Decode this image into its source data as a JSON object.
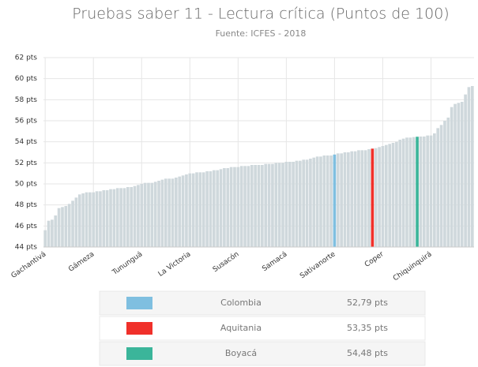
{
  "chart_data": {
    "type": "bar",
    "title": "Pruebas saber 11 - Lectura crítica (Puntos de 100)",
    "subtitle": "Fuente: ICFES - 2018",
    "categories": [
      "Gachantivá",
      null,
      null,
      null,
      null,
      null,
      null,
      null,
      null,
      null,
      null,
      null,
      null,
      null,
      "Gámeza",
      null,
      null,
      null,
      null,
      null,
      null,
      null,
      null,
      null,
      null,
      null,
      null,
      null,
      "Tununguá",
      null,
      null,
      null,
      null,
      null,
      null,
      null,
      null,
      null,
      null,
      null,
      null,
      null,
      "La Victoria",
      null,
      null,
      null,
      null,
      null,
      null,
      null,
      null,
      null,
      null,
      null,
      null,
      null,
      "Susacón",
      null,
      null,
      null,
      null,
      null,
      null,
      null,
      null,
      null,
      null,
      null,
      null,
      null,
      "Samacá",
      null,
      null,
      null,
      null,
      null,
      null,
      null,
      null,
      null,
      null,
      null,
      null,
      null,
      "Sativanorte",
      null,
      null,
      null,
      null,
      null,
      null,
      null,
      null,
      null,
      null,
      null,
      null,
      null,
      "Coper",
      null,
      null,
      null,
      null,
      null,
      null,
      null,
      null,
      null,
      null,
      null,
      null,
      null,
      "Chiquinquirá",
      null,
      null,
      null,
      null,
      null,
      null,
      null,
      null,
      null,
      null,
      null,
      null
    ],
    "values": [
      45.6,
      46.5,
      46.6,
      47.0,
      47.7,
      47.8,
      47.9,
      48.1,
      48.4,
      48.7,
      49.0,
      49.1,
      49.2,
      49.2,
      49.2,
      49.3,
      49.3,
      49.4,
      49.4,
      49.5,
      49.5,
      49.6,
      49.6,
      49.6,
      49.7,
      49.7,
      49.8,
      49.9,
      50.0,
      50.1,
      50.1,
      50.1,
      50.2,
      50.3,
      50.4,
      50.5,
      50.5,
      50.5,
      50.6,
      50.7,
      50.8,
      50.9,
      51.0,
      51.0,
      51.1,
      51.1,
      51.1,
      51.2,
      51.2,
      51.3,
      51.3,
      51.4,
      51.5,
      51.5,
      51.6,
      51.6,
      51.6,
      51.7,
      51.7,
      51.7,
      51.8,
      51.8,
      51.8,
      51.8,
      51.9,
      51.9,
      51.9,
      52.0,
      52.0,
      52.0,
      52.1,
      52.1,
      52.1,
      52.2,
      52.2,
      52.3,
      52.3,
      52.4,
      52.5,
      52.6,
      52.6,
      52.7,
      52.7,
      52.7,
      52.79,
      52.9,
      52.9,
      53.0,
      53.0,
      53.1,
      53.1,
      53.2,
      53.2,
      53.2,
      53.3,
      53.35,
      53.4,
      53.5,
      53.6,
      53.7,
      53.8,
      53.9,
      54.0,
      54.2,
      54.3,
      54.4,
      54.4,
      54.45,
      54.48,
      54.5,
      54.5,
      54.6,
      54.6,
      54.8,
      55.3,
      55.6,
      56.0,
      56.3,
      57.3,
      57.6,
      57.7,
      57.8,
      58.5,
      59.2,
      59.3
    ],
    "colors": [
      "#cfd8dc",
      "#cfd8dc",
      "#cfd8dc",
      "#cfd8dc",
      "#cfd8dc",
      "#cfd8dc",
      "#cfd8dc",
      "#cfd8dc",
      "#cfd8dc",
      "#cfd8dc",
      "#cfd8dc",
      "#cfd8dc",
      "#cfd8dc",
      "#cfd8dc",
      "#cfd8dc",
      "#cfd8dc",
      "#cfd8dc",
      "#cfd8dc",
      "#cfd8dc",
      "#cfd8dc",
      "#cfd8dc",
      "#cfd8dc",
      "#cfd8dc",
      "#cfd8dc",
      "#cfd8dc",
      "#cfd8dc",
      "#cfd8dc",
      "#cfd8dc",
      "#cfd8dc",
      "#cfd8dc",
      "#cfd8dc",
      "#cfd8dc",
      "#cfd8dc",
      "#cfd8dc",
      "#cfd8dc",
      "#cfd8dc",
      "#cfd8dc",
      "#cfd8dc",
      "#cfd8dc",
      "#cfd8dc",
      "#cfd8dc",
      "#cfd8dc",
      "#cfd8dc",
      "#cfd8dc",
      "#cfd8dc",
      "#cfd8dc",
      "#cfd8dc",
      "#cfd8dc",
      "#cfd8dc",
      "#cfd8dc",
      "#cfd8dc",
      "#cfd8dc",
      "#cfd8dc",
      "#cfd8dc",
      "#cfd8dc",
      "#cfd8dc",
      "#cfd8dc",
      "#cfd8dc",
      "#cfd8dc",
      "#cfd8dc",
      "#cfd8dc",
      "#cfd8dc",
      "#cfd8dc",
      "#cfd8dc",
      "#cfd8dc",
      "#cfd8dc",
      "#cfd8dc",
      "#cfd8dc",
      "#cfd8dc",
      "#cfd8dc",
      "#cfd8dc",
      "#cfd8dc",
      "#cfd8dc",
      "#cfd8dc",
      "#cfd8dc",
      "#cfd8dc",
      "#cfd8dc",
      "#cfd8dc",
      "#cfd8dc",
      "#cfd8dc",
      "#cfd8dc",
      "#cfd8dc",
      "#cfd8dc",
      "#cfd8dc",
      "#7fbfe0",
      "#cfd8dc",
      "#cfd8dc",
      "#cfd8dc",
      "#cfd8dc",
      "#cfd8dc",
      "#cfd8dc",
      "#cfd8dc",
      "#cfd8dc",
      "#cfd8dc",
      "#cfd8dc",
      "#f0302a",
      "#cfd8dc",
      "#cfd8dc",
      "#cfd8dc",
      "#cfd8dc",
      "#cfd8dc",
      "#cfd8dc",
      "#cfd8dc",
      "#cfd8dc",
      "#cfd8dc",
      "#cfd8dc",
      "#cfd8dc",
      "#cfd8dc",
      "#3bb59a",
      "#cfd8dc",
      "#cfd8dc",
      "#cfd8dc",
      "#cfd8dc",
      "#cfd8dc",
      "#cfd8dc",
      "#cfd8dc",
      "#cfd8dc",
      "#cfd8dc",
      "#cfd8dc",
      "#cfd8dc",
      "#cfd8dc",
      "#cfd8dc",
      "#cfd8dc",
      "#cfd8dc",
      "#cfd8dc"
    ],
    "ylim": [
      44,
      62
    ],
    "yticks": [
      {
        "value": 44,
        "label": "44 pts"
      },
      {
        "value": 46,
        "label": "46 pts"
      },
      {
        "value": 48,
        "label": "48 pts"
      },
      {
        "value": 50,
        "label": "50 pts"
      },
      {
        "value": 52,
        "label": "52 pts"
      },
      {
        "value": 54,
        "label": "54 pts"
      },
      {
        "value": 56,
        "label": "56 pts"
      },
      {
        "value": 58,
        "label": "58 pts"
      },
      {
        "value": 60,
        "label": "60 pts"
      },
      {
        "value": 62,
        "label": "62 pts"
      }
    ],
    "grid": true,
    "legend": [
      {
        "name": "Colombia",
        "color": "#7fbfe0",
        "value": 52.79,
        "value_label": "52,79 pts"
      },
      {
        "name": "Aquitania",
        "color": "#f0302a",
        "value": 53.35,
        "value_label": "53,35 pts"
      },
      {
        "name": "Boyacá",
        "color": "#3bb59a",
        "value": 54.48,
        "value_label": "54,48 pts"
      }
    ]
  }
}
